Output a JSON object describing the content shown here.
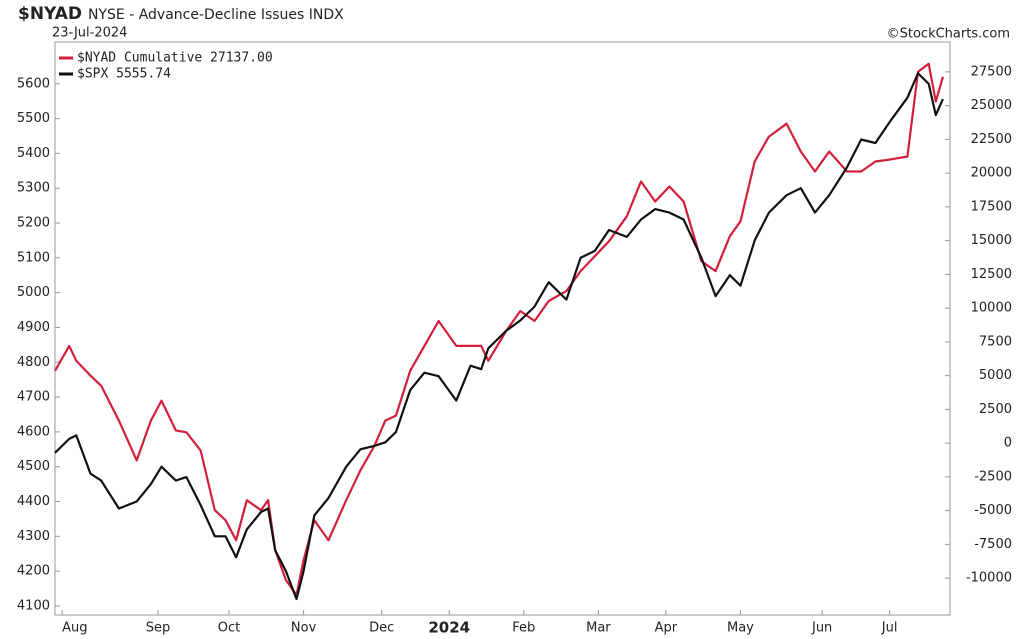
{
  "chart_data": {
    "type": "line",
    "symbol": "$NYAD",
    "title": "NYSE - Advance-Decline Issues INDX",
    "date": "23-Jul-2024",
    "credit": "©StockCharts.com",
    "x": [
      0,
      4,
      6,
      10,
      13,
      18,
      23,
      27,
      30,
      34,
      37,
      41,
      45,
      48,
      51,
      54,
      58,
      60,
      62,
      65,
      68,
      70,
      73,
      77,
      82,
      86,
      90,
      93,
      96,
      100,
      104,
      108,
      113,
      117,
      120,
      122,
      127,
      131,
      135,
      139,
      144,
      148,
      152,
      156,
      161,
      165,
      169,
      173,
      177,
      182,
      186,
      190,
      193,
      197,
      201,
      206,
      210,
      214,
      218,
      223,
      227,
      231,
      235,
      240,
      243,
      246,
      248,
      250
    ],
    "xlim": [
      0,
      252
    ],
    "xticks": [
      {
        "value": 2,
        "label": "Aug"
      },
      {
        "value": 29,
        "label": "Sep"
      },
      {
        "value": 49,
        "label": "Oct"
      },
      {
        "value": 70,
        "label": "Nov"
      },
      {
        "value": 92,
        "label": "Dec"
      },
      {
        "value": 111,
        "label": "2024"
      },
      {
        "value": 132,
        "label": "Feb"
      },
      {
        "value": 153,
        "label": "Mar"
      },
      {
        "value": 172,
        "label": "Apr"
      },
      {
        "value": 193,
        "label": "May"
      },
      {
        "value": 216,
        "label": "Jun"
      },
      {
        "value": 235,
        "label": "Jul"
      }
    ],
    "ylim": [
      4074,
      5720
    ],
    "yticks": [
      4100,
      4200,
      4300,
      4400,
      4500,
      4600,
      4700,
      4800,
      4900,
      5000,
      5100,
      5200,
      5300,
      5400,
      5500,
      5600
    ],
    "y2lim": [
      -12731,
      29714
    ],
    "y2ticks": [
      -10000,
      -7500,
      -5000,
      -2500,
      0,
      2500,
      5000,
      7500,
      10000,
      12500,
      15000,
      17500,
      20000,
      22500,
      25000,
      27500
    ],
    "grid": false,
    "legend": "top-left",
    "series": [
      {
        "name": "$NYAD Cumulative 27137.00",
        "color": "#d21f3c",
        "axis": "y2",
        "values": [
          5360,
          7200,
          6100,
          5000,
          4250,
          1670,
          -1280,
          1670,
          3150,
          940,
          800,
          -540,
          -4970,
          -5710,
          -7190,
          -4230,
          -4970,
          -4230,
          -7920,
          -10140,
          -11250,
          -8660,
          -5710,
          -7190,
          -4230,
          -2020,
          -170,
          1670,
          2040,
          5360,
          7200,
          9050,
          7200,
          7200,
          7200,
          6100,
          8310,
          9790,
          9050,
          10530,
          11260,
          12740,
          13850,
          14950,
          16800,
          19380,
          17900,
          19010,
          17900,
          13480,
          12740,
          15320,
          16430,
          20860,
          22710,
          23660,
          21600,
          20120,
          21600,
          20120,
          20120,
          20860,
          21000,
          21230,
          27500,
          28100,
          25300,
          27137
        ]
      },
      {
        "name": "$SPX 5555.74",
        "color": "#111111",
        "axis": "y",
        "values": [
          4540,
          4580,
          4590,
          4480,
          4460,
          4380,
          4400,
          4450,
          4500,
          4460,
          4470,
          4390,
          4300,
          4300,
          4240,
          4320,
          4370,
          4380,
          4260,
          4200,
          4120,
          4200,
          4360,
          4410,
          4500,
          4550,
          4560,
          4570,
          4600,
          4720,
          4770,
          4760,
          4690,
          4790,
          4780,
          4840,
          4890,
          4920,
          4960,
          5030,
          4980,
          5100,
          5120,
          5180,
          5160,
          5210,
          5240,
          5230,
          5210,
          5100,
          4990,
          5050,
          5020,
          5150,
          5230,
          5280,
          5300,
          5230,
          5280,
          5360,
          5440,
          5430,
          5490,
          5560,
          5630,
          5600,
          5510,
          5556
        ]
      }
    ]
  }
}
